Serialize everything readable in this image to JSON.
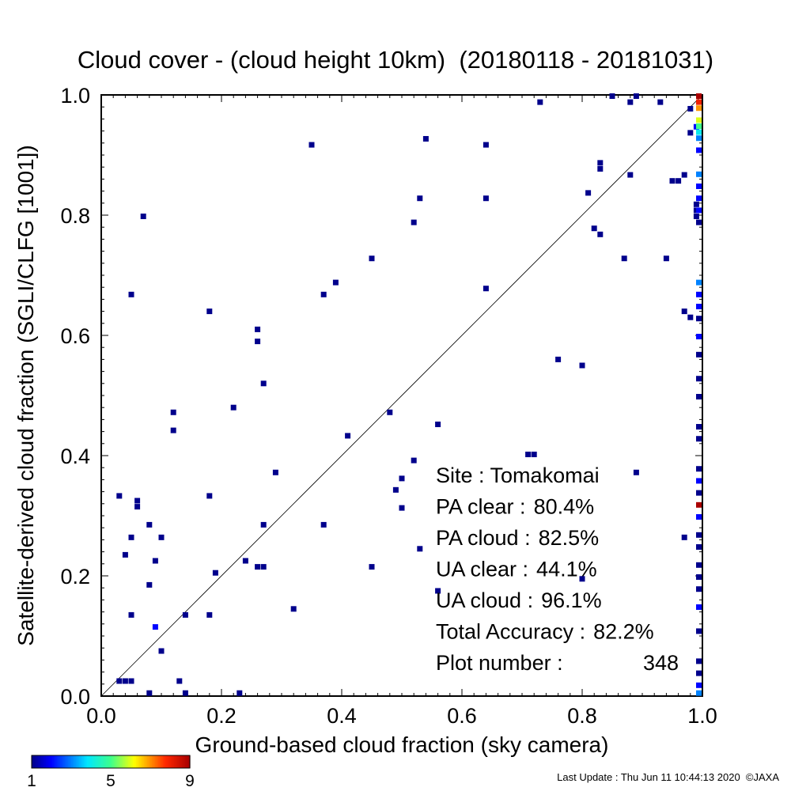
{
  "chart_data": {
    "type": "heatmap",
    "title": "Cloud cover - (cloud height 10km)  (20180118 - 20181031)",
    "xlabel": "Ground-based cloud fraction (sky camera)",
    "ylabel": "Satellite-derived cloud fraction (SGLI/CLFG [1001])",
    "xlim": [
      0.0,
      1.0
    ],
    "ylim": [
      0.0,
      1.0
    ],
    "x_ticks": [
      "0.0",
      "0.2",
      "0.4",
      "0.6",
      "0.8",
      "1.0"
    ],
    "y_ticks": [
      "0.0",
      "0.2",
      "0.4",
      "0.6",
      "0.8",
      "1.0"
    ],
    "grid": false,
    "diagonal_line": true,
    "colorbar": {
      "min_label": "1",
      "mid_label": "5",
      "max_label": "9",
      "min": 1,
      "max": 9
    },
    "stats": [
      {
        "label": "Site : Tomakomai",
        "value": ""
      },
      {
        "label": "PA clear :",
        "value": "80.4%"
      },
      {
        "label": "PA cloud :",
        "value": "82.5%"
      },
      {
        "label": "UA clear :",
        "value": "44.1%"
      },
      {
        "label": "UA cloud :",
        "value": "96.1%"
      },
      {
        "label": "Total Accuracy :",
        "value": "82.2%"
      },
      {
        "label": "Plot number :",
        "value": "348"
      }
    ],
    "points": [
      {
        "x": 0.03,
        "y": 0.333,
        "count": 1
      },
      {
        "x": 0.06,
        "y": 0.325,
        "count": 1
      },
      {
        "x": 0.06,
        "y": 0.315,
        "count": 1
      },
      {
        "x": 0.08,
        "y": 0.285,
        "count": 1
      },
      {
        "x": 0.1,
        "y": 0.264,
        "count": 1
      },
      {
        "x": 0.05,
        "y": 0.264,
        "count": 1
      },
      {
        "x": 0.04,
        "y": 0.235,
        "count": 1
      },
      {
        "x": 0.09,
        "y": 0.225,
        "count": 1
      },
      {
        "x": 0.08,
        "y": 0.185,
        "count": 1
      },
      {
        "x": 0.05,
        "y": 0.135,
        "count": 1
      },
      {
        "x": 0.09,
        "y": 0.115,
        "count": 2
      },
      {
        "x": 0.1,
        "y": 0.075,
        "count": 1
      },
      {
        "x": 0.03,
        "y": 0.025,
        "count": 1
      },
      {
        "x": 0.04,
        "y": 0.025,
        "count": 1
      },
      {
        "x": 0.05,
        "y": 0.025,
        "count": 1
      },
      {
        "x": 0.13,
        "y": 0.025,
        "count": 1
      },
      {
        "x": 0.08,
        "y": 0.005,
        "count": 1
      },
      {
        "x": 0.14,
        "y": 0.005,
        "count": 1
      },
      {
        "x": 0.23,
        "y": 0.005,
        "count": 1
      },
      {
        "x": 0.07,
        "y": 0.798,
        "count": 1
      },
      {
        "x": 0.05,
        "y": 0.668,
        "count": 1
      },
      {
        "x": 0.12,
        "y": 0.472,
        "count": 1
      },
      {
        "x": 0.12,
        "y": 0.442,
        "count": 1
      },
      {
        "x": 0.18,
        "y": 0.64,
        "count": 1
      },
      {
        "x": 0.18,
        "y": 0.333,
        "count": 1
      },
      {
        "x": 0.19,
        "y": 0.205,
        "count": 1
      },
      {
        "x": 0.14,
        "y": 0.135,
        "count": 1
      },
      {
        "x": 0.18,
        "y": 0.135,
        "count": 1
      },
      {
        "x": 0.22,
        "y": 0.48,
        "count": 1
      },
      {
        "x": 0.26,
        "y": 0.61,
        "count": 1
      },
      {
        "x": 0.26,
        "y": 0.59,
        "count": 1
      },
      {
        "x": 0.27,
        "y": 0.52,
        "count": 1
      },
      {
        "x": 0.29,
        "y": 0.372,
        "count": 1
      },
      {
        "x": 0.27,
        "y": 0.285,
        "count": 1
      },
      {
        "x": 0.24,
        "y": 0.225,
        "count": 1
      },
      {
        "x": 0.26,
        "y": 0.215,
        "count": 1
      },
      {
        "x": 0.27,
        "y": 0.215,
        "count": 1
      },
      {
        "x": 0.32,
        "y": 0.145,
        "count": 1
      },
      {
        "x": 0.35,
        "y": 0.917,
        "count": 1
      },
      {
        "x": 0.37,
        "y": 0.668,
        "count": 1
      },
      {
        "x": 0.39,
        "y": 0.688,
        "count": 1
      },
      {
        "x": 0.41,
        "y": 0.433,
        "count": 1
      },
      {
        "x": 0.37,
        "y": 0.285,
        "count": 1
      },
      {
        "x": 0.45,
        "y": 0.728,
        "count": 1
      },
      {
        "x": 0.45,
        "y": 0.215,
        "count": 1
      },
      {
        "x": 0.48,
        "y": 0.472,
        "count": 1
      },
      {
        "x": 0.49,
        "y": 0.343,
        "count": 1
      },
      {
        "x": 0.5,
        "y": 0.362,
        "count": 1
      },
      {
        "x": 0.5,
        "y": 0.313,
        "count": 1
      },
      {
        "x": 0.52,
        "y": 0.392,
        "count": 1
      },
      {
        "x": 0.52,
        "y": 0.788,
        "count": 1
      },
      {
        "x": 0.53,
        "y": 0.828,
        "count": 1
      },
      {
        "x": 0.53,
        "y": 0.245,
        "count": 1
      },
      {
        "x": 0.54,
        "y": 0.927,
        "count": 1
      },
      {
        "x": 0.56,
        "y": 0.452,
        "count": 1
      },
      {
        "x": 0.56,
        "y": 0.175,
        "count": 1
      },
      {
        "x": 0.64,
        "y": 0.917,
        "count": 1
      },
      {
        "x": 0.64,
        "y": 0.828,
        "count": 1
      },
      {
        "x": 0.64,
        "y": 0.678,
        "count": 1
      },
      {
        "x": 0.71,
        "y": 0.402,
        "count": 1
      },
      {
        "x": 0.72,
        "y": 0.402,
        "count": 1
      },
      {
        "x": 0.76,
        "y": 0.56,
        "count": 1
      },
      {
        "x": 0.8,
        "y": 0.55,
        "count": 1
      },
      {
        "x": 0.8,
        "y": 0.195,
        "count": 1
      },
      {
        "x": 0.73,
        "y": 0.988,
        "count": 1
      },
      {
        "x": 0.85,
        "y": 0.998,
        "count": 1
      },
      {
        "x": 0.81,
        "y": 0.837,
        "count": 1
      },
      {
        "x": 0.82,
        "y": 0.778,
        "count": 1
      },
      {
        "x": 0.83,
        "y": 0.768,
        "count": 1
      },
      {
        "x": 0.83,
        "y": 0.887,
        "count": 1
      },
      {
        "x": 0.83,
        "y": 0.877,
        "count": 1
      },
      {
        "x": 0.87,
        "y": 0.728,
        "count": 1
      },
      {
        "x": 0.88,
        "y": 0.988,
        "count": 1
      },
      {
        "x": 0.89,
        "y": 0.998,
        "count": 1
      },
      {
        "x": 0.88,
        "y": 0.867,
        "count": 1
      },
      {
        "x": 0.89,
        "y": 0.372,
        "count": 1
      },
      {
        "x": 0.93,
        "y": 0.988,
        "count": 1
      },
      {
        "x": 0.94,
        "y": 0.728,
        "count": 1
      },
      {
        "x": 0.95,
        "y": 0.857,
        "count": 1
      },
      {
        "x": 0.96,
        "y": 0.857,
        "count": 1
      },
      {
        "x": 0.97,
        "y": 0.867,
        "count": 1
      },
      {
        "x": 0.97,
        "y": 0.64,
        "count": 1
      },
      {
        "x": 0.98,
        "y": 0.63,
        "count": 1
      },
      {
        "x": 0.97,
        "y": 0.264,
        "count": 1
      },
      {
        "x": 0.98,
        "y": 0.977,
        "count": 1
      },
      {
        "x": 0.99,
        "y": 0.947,
        "count": 2
      },
      {
        "x": 0.98,
        "y": 0.937,
        "count": 1
      },
      {
        "x": 0.99,
        "y": 0.818,
        "count": 1
      },
      {
        "x": 0.99,
        "y": 0.808,
        "count": 1
      },
      {
        "x": 0.99,
        "y": 0.798,
        "count": 1
      },
      {
        "x": 0.995,
        "y": 0.998,
        "count": 9
      },
      {
        "x": 0.995,
        "y": 0.988,
        "count": 8
      },
      {
        "x": 0.995,
        "y": 0.978,
        "count": 7
      },
      {
        "x": 0.995,
        "y": 0.958,
        "count": 6
      },
      {
        "x": 0.995,
        "y": 0.948,
        "count": 5
      },
      {
        "x": 0.995,
        "y": 0.938,
        "count": 4
      },
      {
        "x": 0.995,
        "y": 0.928,
        "count": 3
      },
      {
        "x": 0.995,
        "y": 0.908,
        "count": 2
      },
      {
        "x": 0.995,
        "y": 0.868,
        "count": 3
      },
      {
        "x": 0.995,
        "y": 0.848,
        "count": 2
      },
      {
        "x": 0.995,
        "y": 0.828,
        "count": 2
      },
      {
        "x": 0.995,
        "y": 0.808,
        "count": 2
      },
      {
        "x": 0.995,
        "y": 0.788,
        "count": 1
      },
      {
        "x": 0.995,
        "y": 0.688,
        "count": 3
      },
      {
        "x": 0.995,
        "y": 0.668,
        "count": 2
      },
      {
        "x": 0.995,
        "y": 0.648,
        "count": 2
      },
      {
        "x": 0.995,
        "y": 0.628,
        "count": 1
      },
      {
        "x": 0.995,
        "y": 0.598,
        "count": 2
      },
      {
        "x": 0.995,
        "y": 0.568,
        "count": 1
      },
      {
        "x": 0.995,
        "y": 0.528,
        "count": 1
      },
      {
        "x": 0.995,
        "y": 0.498,
        "count": 1
      },
      {
        "x": 0.995,
        "y": 0.448,
        "count": 1
      },
      {
        "x": 0.995,
        "y": 0.428,
        "count": 1
      },
      {
        "x": 0.995,
        "y": 0.378,
        "count": 1
      },
      {
        "x": 0.995,
        "y": 0.358,
        "count": 2
      },
      {
        "x": 0.995,
        "y": 0.338,
        "count": 1
      },
      {
        "x": 0.995,
        "y": 0.318,
        "count": 9
      },
      {
        "x": 0.995,
        "y": 0.298,
        "count": 2
      },
      {
        "x": 0.995,
        "y": 0.268,
        "count": 1
      },
      {
        "x": 0.995,
        "y": 0.248,
        "count": 1
      },
      {
        "x": 0.995,
        "y": 0.218,
        "count": 1
      },
      {
        "x": 0.995,
        "y": 0.198,
        "count": 1
      },
      {
        "x": 0.995,
        "y": 0.178,
        "count": 1
      },
      {
        "x": 0.995,
        "y": 0.148,
        "count": 2
      },
      {
        "x": 0.995,
        "y": 0.108,
        "count": 1
      },
      {
        "x": 0.995,
        "y": 0.058,
        "count": 1
      },
      {
        "x": 0.995,
        "y": 0.038,
        "count": 1
      },
      {
        "x": 0.995,
        "y": 0.018,
        "count": 2
      },
      {
        "x": 0.995,
        "y": 0.005,
        "count": 3
      }
    ]
  },
  "footer": {
    "last_update": "Last Update : Thu Jun 11 10:44:13 2020  ©JAXA"
  }
}
